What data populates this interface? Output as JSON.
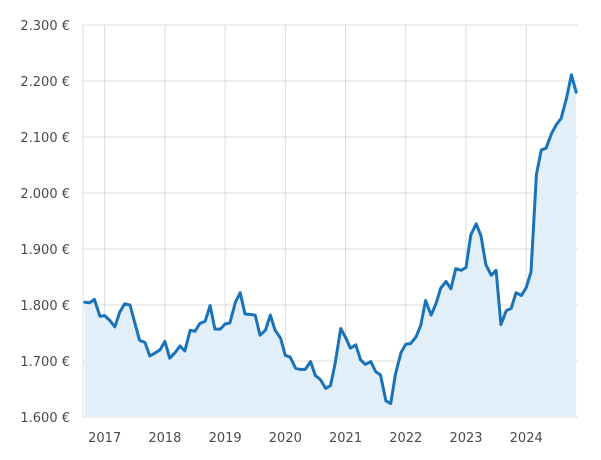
{
  "chart_data": {
    "type": "area",
    "title": "",
    "xlabel": "",
    "ylabel": "",
    "y_tick_labels": [
      "1.600 €",
      "1.700 €",
      "1.800 €",
      "1.900 €",
      "2.000 €",
      "2.100 €",
      "2.200 €",
      "2.300 €"
    ],
    "y_ticks": [
      1600,
      1700,
      1800,
      1900,
      2000,
      2100,
      2200,
      2300
    ],
    "ylim": [
      1600,
      2300
    ],
    "x_tick_labels": [
      "2017",
      "2018",
      "2019",
      "2020",
      "2021",
      "2022",
      "2023",
      "2024"
    ],
    "x_ticks": [
      2017,
      2018,
      2019,
      2020,
      2021,
      2022,
      2023,
      2024
    ],
    "xlim": [
      2016.64,
      2024.86
    ],
    "grid": true,
    "colors": {
      "line": "#1a73b8",
      "fill": "#e2eff8",
      "grid": "#dcdcdc",
      "text": "#4a4a4a"
    },
    "series": [
      {
        "x": [
          2016.67,
          2016.75,
          2016.83,
          2016.92,
          2017.0,
          2017.08,
          2017.17,
          2017.25,
          2017.33,
          2017.42,
          2017.5,
          2017.58,
          2017.67,
          2017.75,
          2017.83,
          2017.92,
          2018.0,
          2018.08,
          2018.17,
          2018.25,
          2018.33,
          2018.42,
          2018.5,
          2018.58,
          2018.67,
          2018.75,
          2018.83,
          2018.92,
          2019.0,
          2019.08,
          2019.17,
          2019.25,
          2019.33,
          2019.42,
          2019.5,
          2019.58,
          2019.67,
          2019.75,
          2019.83,
          2019.92,
          2020.0,
          2020.08,
          2020.17,
          2020.25,
          2020.33,
          2020.42,
          2020.5,
          2020.58,
          2020.67,
          2020.75,
          2020.83,
          2020.92,
          2021.0,
          2021.08,
          2021.17,
          2021.25,
          2021.33,
          2021.42,
          2021.5,
          2021.58,
          2021.67,
          2021.75,
          2021.83,
          2021.92,
          2022.0,
          2022.08,
          2022.17,
          2022.25,
          2022.33,
          2022.42,
          2022.5,
          2022.58,
          2022.67,
          2022.75,
          2022.83,
          2022.92,
          2023.0,
          2023.08,
          2023.17,
          2023.25,
          2023.33,
          2023.42,
          2023.5,
          2023.58,
          2023.67,
          2023.75,
          2023.83,
          2023.92,
          2024.0,
          2024.08,
          2024.17,
          2024.25,
          2024.33,
          2024.42,
          2024.5,
          2024.58,
          2024.67,
          2024.75,
          2024.83
        ],
        "values": [
          1805,
          1804,
          1810,
          1780,
          1781,
          1773,
          1761,
          1787,
          1802,
          1800,
          1768,
          1737,
          1733,
          1709,
          1714,
          1720,
          1735,
          1705,
          1715,
          1727,
          1718,
          1755,
          1753,
          1767,
          1771,
          1799,
          1757,
          1757,
          1766,
          1768,
          1805,
          1822,
          1784,
          1783,
          1782,
          1746,
          1755,
          1782,
          1755,
          1741,
          1710,
          1707,
          1687,
          1685,
          1685,
          1699,
          1674,
          1667,
          1651,
          1656,
          1697,
          1758,
          1742,
          1723,
          1729,
          1702,
          1694,
          1699,
          1681,
          1675,
          1629,
          1624,
          1677,
          1715,
          1730,
          1731,
          1743,
          1764,
          1808,
          1782,
          1802,
          1830,
          1842,
          1829,
          1865,
          1862,
          1867,
          1925,
          1945,
          1923,
          1872,
          1853,
          1862,
          1765,
          1790,
          1794,
          1822,
          1817,
          1831,
          1859,
          2033,
          2077,
          2080,
          2106,
          2122,
          2133,
          2170,
          2211,
          2180
        ]
      }
    ]
  }
}
